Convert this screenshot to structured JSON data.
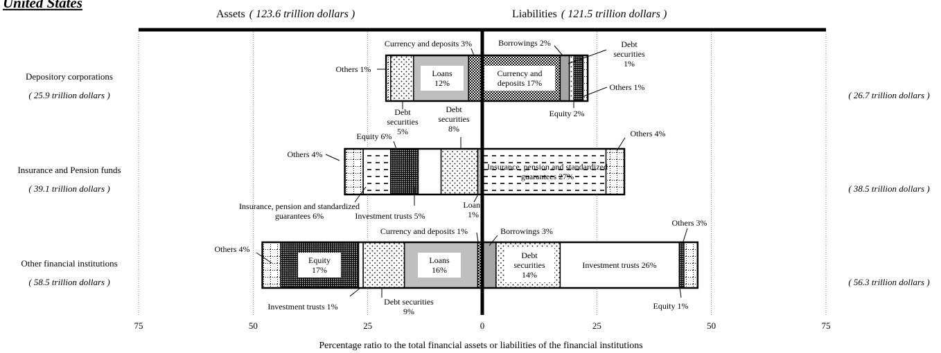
{
  "chart_data": {
    "type": "diverging_stacked_bar",
    "title": "United States",
    "left_header": "Assets",
    "left_total": "( 123.6 trillion dollars )",
    "right_header": "Liabilities",
    "right_total": "( 121.5 trillion dollars )",
    "x_label": "Percentage ratio to the total financial assets or liabilities of the financial institutions",
    "xlim": [
      -75,
      75
    ],
    "xticks": [
      {
        "value": -75,
        "label": "75"
      },
      {
        "value": -50,
        "label": "50"
      },
      {
        "value": -25,
        "label": "25"
      },
      0,
      25,
      50,
      75
    ],
    "grid": true,
    "rows": [
      {
        "name": "Depository corporations",
        "assets_total": "( 25.9 trillion dollars )",
        "liabilities_total": "( 26.7 trillion dollars )",
        "assets": [
          {
            "name": "Currency and deposits",
            "value": 3,
            "value_label": "3%",
            "color": "#808080",
            "pattern": "checker"
          },
          {
            "name": "Loans",
            "value": 12,
            "value_label": "12%",
            "color": "#bfbfbf"
          },
          {
            "name": "Debt securities",
            "value": 5,
            "value_label": "5%",
            "color": "#ffffff",
            "pattern": "dots"
          },
          {
            "name": "Others",
            "value": 1,
            "value_label": "1%",
            "color": "#ffffff",
            "pattern": "grid"
          }
        ],
        "liabilities": [
          {
            "name": "Currency and deposits",
            "value": 17,
            "value_label": "17%",
            "color": "#808080",
            "pattern": "checker"
          },
          {
            "name": "Borrowings",
            "value": 2,
            "value_label": "2%",
            "color": "#a6a6a6"
          },
          {
            "name": "Debt securities",
            "value": 1,
            "value_label": "1%",
            "color": "#ffffff",
            "pattern": "dots"
          },
          {
            "name": "Equity",
            "value": 2,
            "value_label": "2%",
            "color": "#333333",
            "pattern": "dense"
          },
          {
            "name": "Others",
            "value": 1,
            "value_label": "1%",
            "color": "#ffffff",
            "pattern": "grid"
          }
        ]
      },
      {
        "name": "Insurance and Pension funds",
        "assets_total": "( 39.1 trillion dollars )",
        "liabilities_total": "( 38.5 trillion dollars )",
        "assets": [
          {
            "name": "Loans",
            "value": 1,
            "value_label": "1%",
            "color": "#bfbfbf"
          },
          {
            "name": "Debt securities",
            "value": 8,
            "value_label": "8%",
            "color": "#ffffff",
            "pattern": "dots"
          },
          {
            "name": "Investment trusts",
            "value": 5,
            "value_label": "5%",
            "color": "#ffffff"
          },
          {
            "name": "Equity",
            "value": 6,
            "value_label": "6%",
            "color": "#333333",
            "pattern": "dense"
          },
          {
            "name": "Insurance, pension and standardized guarantees",
            "value": 6,
            "value_label": "6%",
            "color": "#ffffff",
            "pattern": "dashes"
          },
          {
            "name": "Others",
            "value": 4,
            "value_label": "4%",
            "color": "#ffffff",
            "pattern": "grid"
          }
        ],
        "liabilities": [
          {
            "name": "Insurance, pension and standardized guarantees",
            "value": 27,
            "value_label": "27%",
            "color": "#ffffff",
            "pattern": "dashes"
          },
          {
            "name": "Others",
            "value": 4,
            "value_label": "4%",
            "color": "#ffffff",
            "pattern": "grid"
          }
        ]
      },
      {
        "name": "Other financial institutions",
        "assets_total": "( 58.5 trillion dollars )",
        "liabilities_total": "( 56.3 trillion dollars )",
        "assets": [
          {
            "name": "Currency and deposits",
            "value": 1,
            "value_label": "1%",
            "color": "#808080",
            "pattern": "checker"
          },
          {
            "name": "Loans",
            "value": 16,
            "value_label": "16%",
            "color": "#bfbfbf"
          },
          {
            "name": "Debt securities",
            "value": 9,
            "value_label": "9%",
            "color": "#ffffff",
            "pattern": "dots"
          },
          {
            "name": "Investment trusts",
            "value": 1,
            "value_label": "1%",
            "color": "#ffffff"
          },
          {
            "name": "Equity",
            "value": 17,
            "value_label": "17%",
            "color": "#333333",
            "pattern": "dense"
          },
          {
            "name": "Others",
            "value": 4,
            "value_label": "4%",
            "color": "#ffffff",
            "pattern": "grid"
          }
        ],
        "liabilities": [
          {
            "name": "Borrowings",
            "value": 3,
            "value_label": "3%",
            "color": "#a6a6a6"
          },
          {
            "name": "Debt securities",
            "value": 14,
            "value_label": "14%",
            "color": "#ffffff",
            "pattern": "dots"
          },
          {
            "name": "Investment trusts",
            "value": 26,
            "value_label": "26%",
            "color": "#ffffff"
          },
          {
            "name": "Equity",
            "value": 1,
            "value_label": "1%",
            "color": "#333333",
            "pattern": "dense"
          },
          {
            "name": "Others",
            "value": 3,
            "value_label": "3%",
            "color": "#ffffff",
            "pattern": "grid"
          }
        ]
      }
    ]
  }
}
